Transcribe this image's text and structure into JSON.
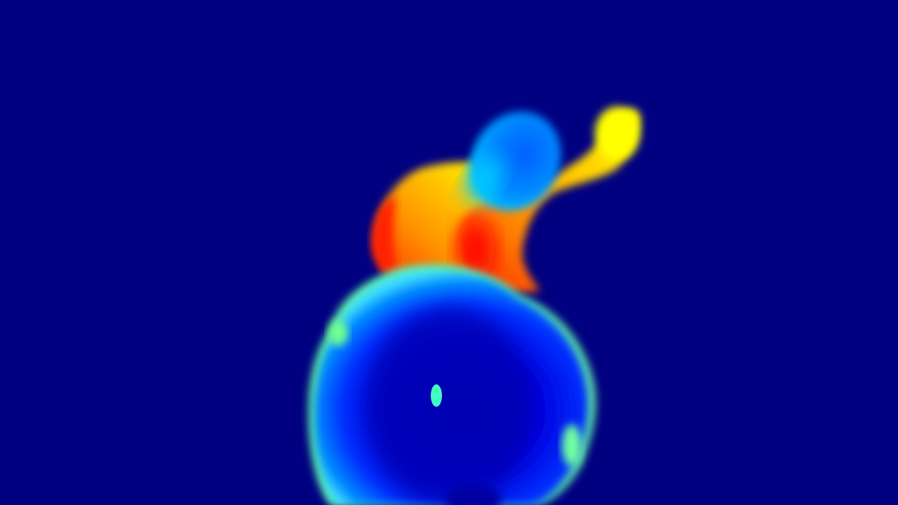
{
  "scene": {
    "background_color": "#000080",
    "colormap": [
      "#000080",
      "#0000ff",
      "#0080ff",
      "#00ffff",
      "#80ff80",
      "#ffff00",
      "#ff8000",
      "#ff0000"
    ]
  }
}
